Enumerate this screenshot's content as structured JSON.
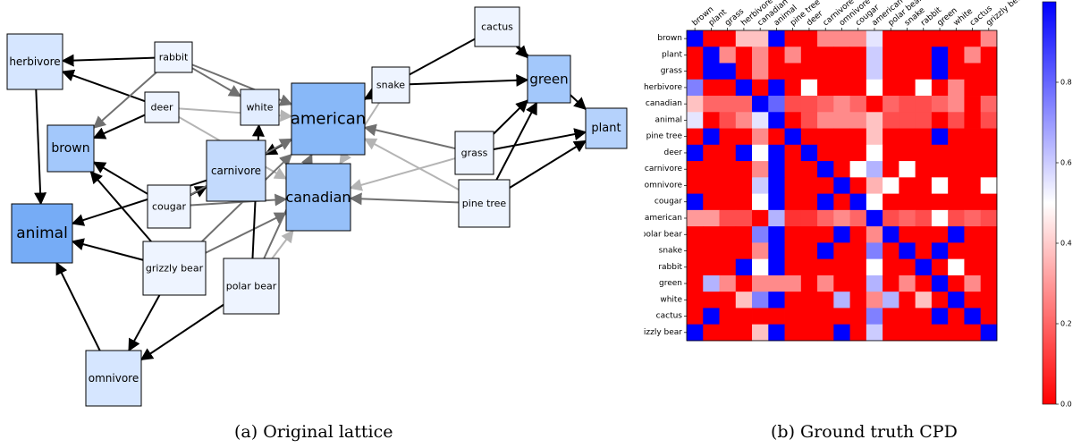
{
  "lattice": {
    "caption": "(a) Original lattice",
    "nodes": [
      {
        "id": "herbivore",
        "label": "herbivore",
        "fill": "#d6e6ff"
      },
      {
        "id": "rabbit",
        "label": "rabbit",
        "fill": "#eef4ff"
      },
      {
        "id": "deer",
        "label": "deer",
        "fill": "#eef4ff"
      },
      {
        "id": "brown",
        "label": "brown",
        "fill": "#a3c8fb"
      },
      {
        "id": "white",
        "label": "white",
        "fill": "#e2edff"
      },
      {
        "id": "american",
        "label": "american",
        "fill": "#88b8f8"
      },
      {
        "id": "snake",
        "label": "snake",
        "fill": "#eef4ff"
      },
      {
        "id": "cactus",
        "label": "cactus",
        "fill": "#eef4ff"
      },
      {
        "id": "green",
        "label": "green",
        "fill": "#a3c8fb"
      },
      {
        "id": "plant",
        "label": "plant",
        "fill": "#b5d2fc"
      },
      {
        "id": "carnivore",
        "label": "carnivore",
        "fill": "#c3dafd"
      },
      {
        "id": "grass",
        "label": "grass",
        "fill": "#eef4ff"
      },
      {
        "id": "canadian",
        "label": "canadian",
        "fill": "#96c0f9"
      },
      {
        "id": "cougar",
        "label": "cougar",
        "fill": "#eef4ff"
      },
      {
        "id": "pine-tree",
        "label": "pine tree",
        "fill": "#eef4ff"
      },
      {
        "id": "animal",
        "label": "animal",
        "fill": "#76acf6"
      },
      {
        "id": "grizzly-bear",
        "label": "grizzly bear",
        "fill": "#eef4ff"
      },
      {
        "id": "polar-bear",
        "label": "polar bear",
        "fill": "#eef4ff"
      },
      {
        "id": "omnivore",
        "label": "omnivore",
        "fill": "#d6e6ff"
      }
    ],
    "edges": [
      {
        "from": "rabbit",
        "to": "herbivore",
        "shade": "black"
      },
      {
        "from": "deer",
        "to": "herbivore",
        "shade": "black"
      },
      {
        "from": "herbivore",
        "to": "animal",
        "shade": "black"
      },
      {
        "from": "deer",
        "to": "brown",
        "shade": "black"
      },
      {
        "from": "rabbit",
        "to": "brown",
        "shade": "gray"
      },
      {
        "from": "rabbit",
        "to": "white",
        "shade": "gray"
      },
      {
        "from": "rabbit",
        "to": "american",
        "shade": "gray"
      },
      {
        "from": "deer",
        "to": "american",
        "shade": "lightgray"
      },
      {
        "from": "deer",
        "to": "canadian",
        "shade": "lightgray"
      },
      {
        "from": "snake",
        "to": "american",
        "shade": "black"
      },
      {
        "from": "snake",
        "to": "green",
        "shade": "black"
      },
      {
        "from": "snake",
        "to": "carnivore",
        "shade": "black"
      },
      {
        "from": "snake",
        "to": "canadian",
        "shade": "lightgray"
      },
      {
        "from": "cactus",
        "to": "american",
        "shade": "black"
      },
      {
        "from": "cactus",
        "to": "green",
        "shade": "black"
      },
      {
        "from": "cactus",
        "to": "plant",
        "shade": "black"
      },
      {
        "from": "grass",
        "to": "green",
        "shade": "black"
      },
      {
        "from": "grass",
        "to": "plant",
        "shade": "black"
      },
      {
        "from": "grass",
        "to": "american",
        "shade": "gray"
      },
      {
        "from": "grass",
        "to": "canadian",
        "shade": "lightgray"
      },
      {
        "from": "pine-tree",
        "to": "green",
        "shade": "black"
      },
      {
        "from": "pine-tree",
        "to": "plant",
        "shade": "black"
      },
      {
        "from": "pine-tree",
        "to": "canadian",
        "shade": "gray"
      },
      {
        "from": "pine-tree",
        "to": "american",
        "shade": "lightgray"
      },
      {
        "from": "carnivore",
        "to": "animal",
        "shade": "black"
      },
      {
        "from": "cougar",
        "to": "carnivore",
        "shade": "black"
      },
      {
        "from": "cougar",
        "to": "brown",
        "shade": "black"
      },
      {
        "from": "cougar",
        "to": "american",
        "shade": "gray"
      },
      {
        "from": "cougar",
        "to": "canadian",
        "shade": "gray"
      },
      {
        "from": "grizzly-bear",
        "to": "brown",
        "shade": "black"
      },
      {
        "from": "grizzly-bear",
        "to": "animal",
        "shade": "black"
      },
      {
        "from": "grizzly-bear",
        "to": "omnivore",
        "shade": "black"
      },
      {
        "from": "grizzly-bear",
        "to": "canadian",
        "shade": "gray"
      },
      {
        "from": "grizzly-bear",
        "to": "american",
        "shade": "gray"
      },
      {
        "from": "polar-bear",
        "to": "white",
        "shade": "black"
      },
      {
        "from": "polar-bear",
        "to": "omnivore",
        "shade": "black"
      },
      {
        "from": "polar-bear",
        "to": "canadian",
        "shade": "lightgray"
      },
      {
        "from": "polar-bear",
        "to": "american",
        "shade": "gray"
      },
      {
        "from": "omnivore",
        "to": "animal",
        "shade": "black"
      }
    ]
  },
  "chart_data": {
    "type": "heatmap",
    "caption": "(b) Ground truth CPD",
    "rows": [
      "brown",
      "plant",
      "grass",
      "herbivore",
      "canadian",
      "animal",
      "pine tree",
      "deer",
      "carnivore",
      "omnivore",
      "cougar",
      "american",
      "polar bear",
      "snake",
      "rabbit",
      "green",
      "white",
      "cactus",
      "grizzly bear"
    ],
    "columns": [
      "brown",
      "plant",
      "grass",
      "herbivore",
      "canadian",
      "animal",
      "pine tree",
      "deer",
      "carnivore",
      "omnivore",
      "cougar",
      "american",
      "polar bear",
      "snake",
      "rabbit",
      "green",
      "white",
      "cactus",
      "grizzly bear"
    ],
    "values": [
      [
        1.0,
        0.0,
        0.0,
        0.38,
        0.38,
        1.0,
        0.0,
        0.0,
        0.27,
        0.27,
        0.27,
        0.55,
        0.0,
        0.0,
        0.0,
        0.0,
        0.0,
        0.0,
        0.27
      ],
      [
        0.0,
        1.0,
        0.27,
        0.0,
        0.27,
        0.0,
        0.27,
        0.0,
        0.0,
        0.0,
        0.0,
        0.6,
        0.0,
        0.0,
        0.0,
        1.0,
        0.0,
        0.27,
        0.0
      ],
      [
        0.0,
        1.0,
        1.0,
        0.0,
        0.27,
        0.0,
        0.0,
        0.0,
        0.0,
        0.0,
        0.0,
        0.6,
        0.0,
        0.0,
        0.0,
        1.0,
        0.0,
        0.0,
        0.0
      ],
      [
        0.75,
        0.0,
        0.0,
        1.0,
        0.0,
        1.0,
        0.0,
        0.5,
        0.0,
        0.0,
        0.0,
        0.5,
        0.0,
        0.0,
        0.5,
        0.0,
        0.27,
        0.0,
        0.0
      ],
      [
        0.38,
        0.2,
        0.2,
        0.2,
        1.0,
        0.8,
        0.15,
        0.15,
        0.2,
        0.27,
        0.2,
        0.0,
        0.2,
        0.15,
        0.15,
        0.2,
        0.27,
        0.0,
        0.2
      ],
      [
        0.55,
        0.0,
        0.15,
        0.27,
        0.55,
        1.0,
        0.0,
        0.15,
        0.27,
        0.27,
        0.27,
        0.38,
        0.15,
        0.15,
        0.15,
        0.0,
        0.15,
        0.0,
        0.15
      ],
      [
        0.0,
        1.0,
        0.0,
        0.0,
        0.27,
        0.0,
        1.0,
        0.0,
        0.0,
        0.0,
        0.0,
        0.38,
        0.0,
        0.0,
        0.0,
        1.0,
        0.0,
        0.0,
        0.0
      ],
      [
        1.0,
        0.0,
        0.0,
        1.0,
        0.5,
        1.0,
        0.0,
        1.0,
        0.0,
        0.0,
        0.0,
        0.5,
        0.0,
        0.0,
        0.0,
        0.0,
        0.0,
        0.0,
        0.0
      ],
      [
        0.0,
        0.0,
        0.0,
        0.0,
        0.27,
        1.0,
        0.0,
        0.0,
        1.0,
        0.0,
        0.5,
        0.65,
        0.0,
        0.5,
        0.0,
        0.0,
        0.0,
        0.0,
        0.0
      ],
      [
        0.0,
        0.0,
        0.0,
        0.0,
        0.6,
        1.0,
        0.0,
        0.0,
        0.0,
        1.0,
        0.0,
        0.35,
        0.5,
        0.0,
        0.0,
        0.5,
        0.0,
        0.0,
        0.5
      ],
      [
        1.0,
        0.0,
        0.0,
        0.0,
        0.5,
        1.0,
        0.0,
        0.0,
        1.0,
        0.0,
        1.0,
        0.5,
        0.0,
        0.0,
        0.0,
        0.0,
        0.0,
        0.0,
        0.0
      ],
      [
        0.3,
        0.3,
        0.15,
        0.15,
        0.0,
        0.65,
        0.1,
        0.1,
        0.2,
        0.27,
        0.2,
        1.0,
        0.15,
        0.2,
        0.15,
        0.5,
        0.15,
        0.2,
        0.15
      ],
      [
        0.0,
        0.0,
        0.0,
        0.0,
        0.75,
        1.0,
        0.0,
        0.0,
        0.0,
        1.0,
        0.0,
        0.27,
        1.0,
        0.0,
        0.0,
        0.0,
        1.0,
        0.0,
        0.0
      ],
      [
        0.0,
        0.0,
        0.0,
        0.0,
        0.27,
        1.0,
        0.0,
        0.0,
        1.0,
        0.0,
        0.0,
        0.75,
        0.0,
        1.0,
        0.0,
        1.0,
        0.0,
        0.0,
        0.0
      ],
      [
        0.0,
        0.0,
        0.0,
        1.0,
        0.5,
        1.0,
        0.0,
        0.0,
        0.0,
        0.0,
        0.0,
        0.5,
        0.0,
        0.0,
        1.0,
        0.0,
        0.5,
        0.0,
        0.0
      ],
      [
        0.0,
        0.65,
        0.27,
        0.0,
        0.27,
        0.27,
        0.27,
        0.0,
        0.27,
        0.0,
        0.0,
        0.65,
        0.0,
        0.27,
        0.0,
        1.0,
        0.0,
        0.27,
        0.0
      ],
      [
        0.0,
        0.0,
        0.0,
        0.38,
        0.75,
        1.0,
        0.0,
        0.0,
        0.0,
        0.65,
        0.0,
        0.27,
        0.65,
        0.0,
        0.38,
        0.0,
        1.0,
        0.0,
        0.0
      ],
      [
        0.0,
        1.0,
        0.0,
        0.0,
        0.0,
        0.0,
        0.0,
        0.0,
        0.0,
        0.0,
        0.0,
        0.75,
        0.0,
        0.0,
        0.0,
        1.0,
        0.0,
        1.0,
        0.0
      ],
      [
        1.0,
        0.0,
        0.0,
        0.0,
        0.38,
        1.0,
        0.0,
        0.0,
        0.0,
        1.0,
        0.0,
        0.6,
        0.0,
        0.0,
        0.0,
        0.0,
        0.0,
        0.0,
        1.0
      ]
    ],
    "colormap": "bwr_r",
    "color_low": "#ff0000",
    "color_mid": "#ffffff",
    "color_high": "#0000ff",
    "colorbar": {
      "range": [
        0.0,
        1.0
      ],
      "ticks": [
        "0.0",
        "0.2",
        "0.4",
        "0.6",
        "0.8"
      ]
    }
  }
}
